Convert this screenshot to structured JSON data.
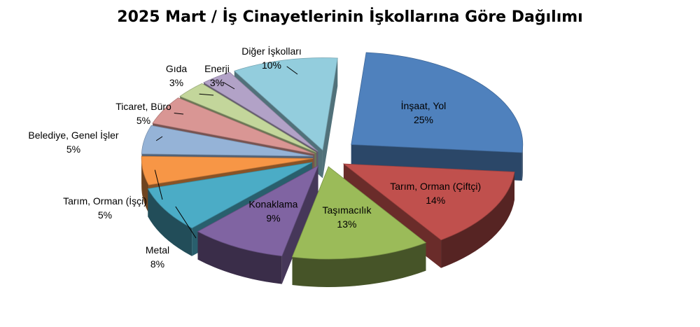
{
  "chart_data": {
    "type": "pie",
    "title": "2025 Mart / İş Cinayetlerinin İşkollarına Göre Dağılımı",
    "unit": "%",
    "slices": [
      {
        "label": "İnşaat, Yol",
        "value": 25,
        "value_label": "25%",
        "color": "#4F81BD"
      },
      {
        "label": "Tarım, Orman (Çiftçi)",
        "value": 14,
        "value_label": "14%",
        "color": "#C0504D"
      },
      {
        "label": "Taşımacılık",
        "value": 13,
        "value_label": "13%",
        "color": "#9BBB59"
      },
      {
        "label": "Konaklama",
        "value": 9,
        "value_label": "9%",
        "color": "#8064A2"
      },
      {
        "label": "Metal",
        "value": 8,
        "value_label": "8%",
        "color": "#4BACC6"
      },
      {
        "label": "Tarım, Orman (İşçi)",
        "value": 5,
        "value_label": "5%",
        "color": "#F79646"
      },
      {
        "label": "Belediye, Genel İşler",
        "value": 5,
        "value_label": "5%",
        "color": "#95B3D7"
      },
      {
        "label": "Ticaret, Büro",
        "value": 5,
        "value_label": "5%",
        "color": "#D99694"
      },
      {
        "label": "Gıda",
        "value": 3,
        "value_label": "3%",
        "color": "#C3D69B"
      },
      {
        "label": "Enerji",
        "value": 3,
        "value_label": "3%",
        "color": "#B2A2C7"
      },
      {
        "label": "Diğer İşkolları",
        "value": 10,
        "value_label": "10%",
        "color": "#93CDDD"
      }
    ]
  }
}
